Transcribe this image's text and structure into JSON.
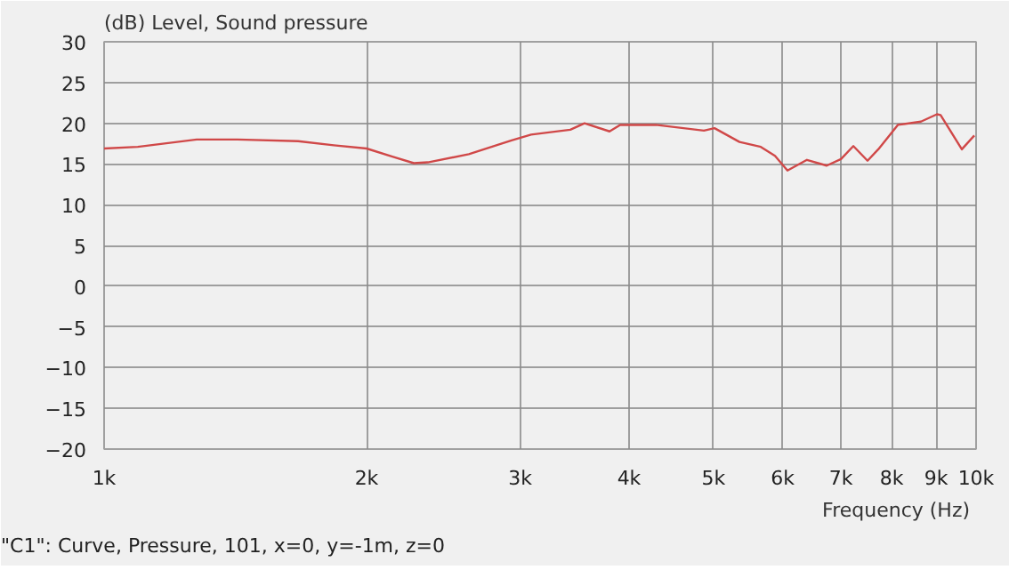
{
  "chart_data": {
    "type": "line",
    "title": "(dB)  Level, Sound pressure",
    "xlabel": "Frequency  (Hz)",
    "annotations": [
      "\"C1\": Curve, Pressure, 101, x=0, y=-1m, z=0"
    ],
    "log": "x",
    "grid": true,
    "marker": "none",
    "line_style": "solid",
    "xlim": [
      1000,
      10000
    ],
    "ylim": [
      -20,
      30
    ],
    "xticks": [
      {
        "value": 1000,
        "label": "1k"
      },
      {
        "value": 2000,
        "label": "2k"
      },
      {
        "value": 3000,
        "label": "3k"
      },
      {
        "value": 4000,
        "label": "4k"
      },
      {
        "value": 5000,
        "label": "5k"
      },
      {
        "value": 6000,
        "label": "6k"
      },
      {
        "value": 7000,
        "label": "7k"
      },
      {
        "value": 8000,
        "label": "8k"
      },
      {
        "value": 9000,
        "label": "9k"
      },
      {
        "value": 10000,
        "label": "10k"
      }
    ],
    "yticks": [
      -20,
      -15,
      -10,
      -5,
      0,
      5,
      10,
      15,
      20,
      25,
      30
    ],
    "series": [
      {
        "color": "#d04848",
        "x": [
          1000,
          1093,
          1277,
          1422,
          1669,
          1834,
          2000,
          2141,
          2266,
          2351,
          2620,
          2838,
          2933,
          3088,
          3425,
          3556,
          3799,
          3907,
          4293,
          4874,
          5012,
          5354,
          5664,
          5880,
          6077,
          6398,
          6741,
          7000,
          7232,
          7508,
          7724,
          8134,
          8645,
          9019,
          9105,
          9631,
          9954
        ],
        "values": [
          16.9,
          17.1,
          18.0,
          18.0,
          17.8,
          17.3,
          16.9,
          15.9,
          15.1,
          15.2,
          16.2,
          17.4,
          17.9,
          18.6,
          19.2,
          20.0,
          19.0,
          19.8,
          19.8,
          19.1,
          19.4,
          17.7,
          17.1,
          16.0,
          14.2,
          15.5,
          14.8,
          15.6,
          17.2,
          15.4,
          16.8,
          19.8,
          20.2,
          21.1,
          21.0,
          16.8,
          18.5
        ]
      }
    ]
  }
}
